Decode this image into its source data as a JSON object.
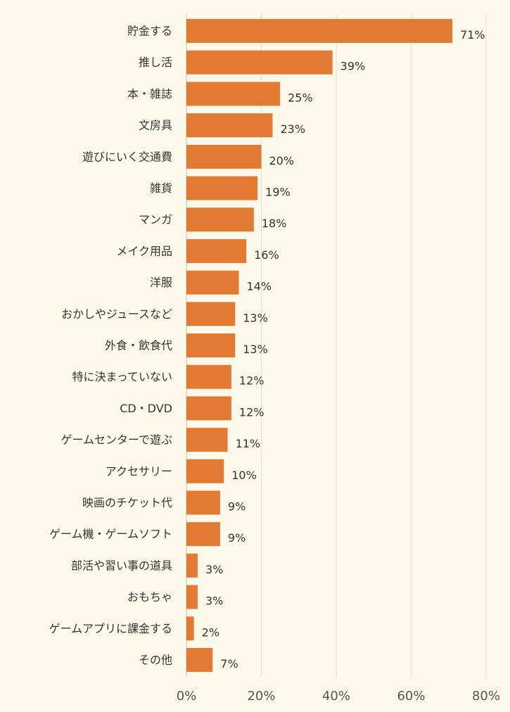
{
  "chart_data": {
    "type": "bar",
    "orientation": "horizontal",
    "categories": [
      "貯金する",
      "推し活",
      "本・雑誌",
      "文房具",
      "遊びにいく交通費",
      "雑貨",
      "マンガ",
      "メイク用品",
      "洋服",
      "おかしやジュースなど",
      "外食・飲食代",
      "特に決まっていない",
      "CD・DVD",
      "ゲームセンターで遊ぶ",
      "アクセサリー",
      "映画のチケット代",
      "ゲーム機・ゲームソフト",
      "部活や習い事の道具",
      "おもちゃ",
      "ゲームアプリに課金する",
      "その他"
    ],
    "values": [
      71,
      39,
      25,
      23,
      20,
      19,
      18,
      16,
      14,
      13,
      13,
      12,
      12,
      11,
      10,
      9,
      9,
      3,
      3,
      2,
      7
    ],
    "value_labels": [
      "71%",
      "39%",
      "25%",
      "23%",
      "20%",
      "19%",
      "18%",
      "16%",
      "14%",
      "13%",
      "13%",
      "12%",
      "12%",
      "11%",
      "10%",
      "9%",
      "9%",
      "3%",
      "3%",
      "2%",
      "7%"
    ],
    "xlim": [
      0,
      80
    ],
    "x_ticks": [
      0,
      20,
      40,
      60,
      80
    ],
    "x_tick_labels": [
      "0%",
      "20%",
      "40%",
      "60%",
      "80%"
    ],
    "grid": true,
    "legend": "none",
    "bar_color": "#e27a33",
    "background_color": "#fdf9ea"
  }
}
